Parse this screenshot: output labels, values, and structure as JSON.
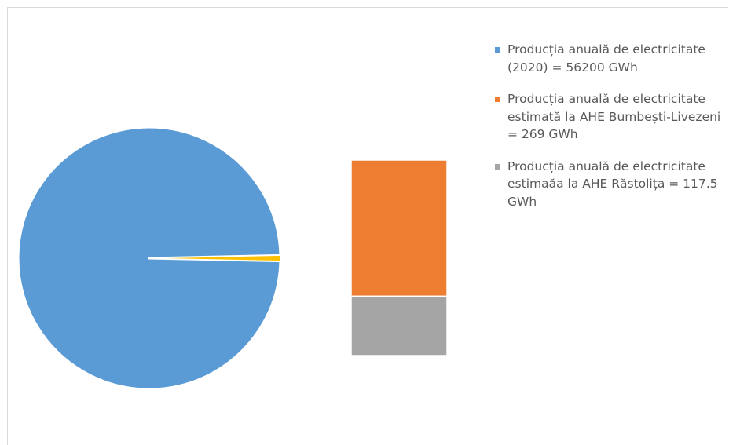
{
  "chart_data": {
    "type": "bar-of-pie",
    "title": "",
    "series": [
      {
        "name": "Producția anuală de electricitate (2020) = 56200 GWh",
        "value": 56200,
        "color": "#5b9bd5",
        "in_secondary": false
      },
      {
        "name": "Producția anuală de electricitate estimată la AHE Bumbești-Livezeni = 269 GWh",
        "value": 269,
        "color": "#ed7d31",
        "in_secondary": true
      },
      {
        "name": "Producția anuală de electricitate estimaăa la AHE Răstolița = 117.5 GWh",
        "value": 117.5,
        "color": "#a5a5a5",
        "in_secondary": true
      }
    ],
    "secondary_slice_color": "#ffc000",
    "legend_position": "right",
    "data_labels": false
  }
}
